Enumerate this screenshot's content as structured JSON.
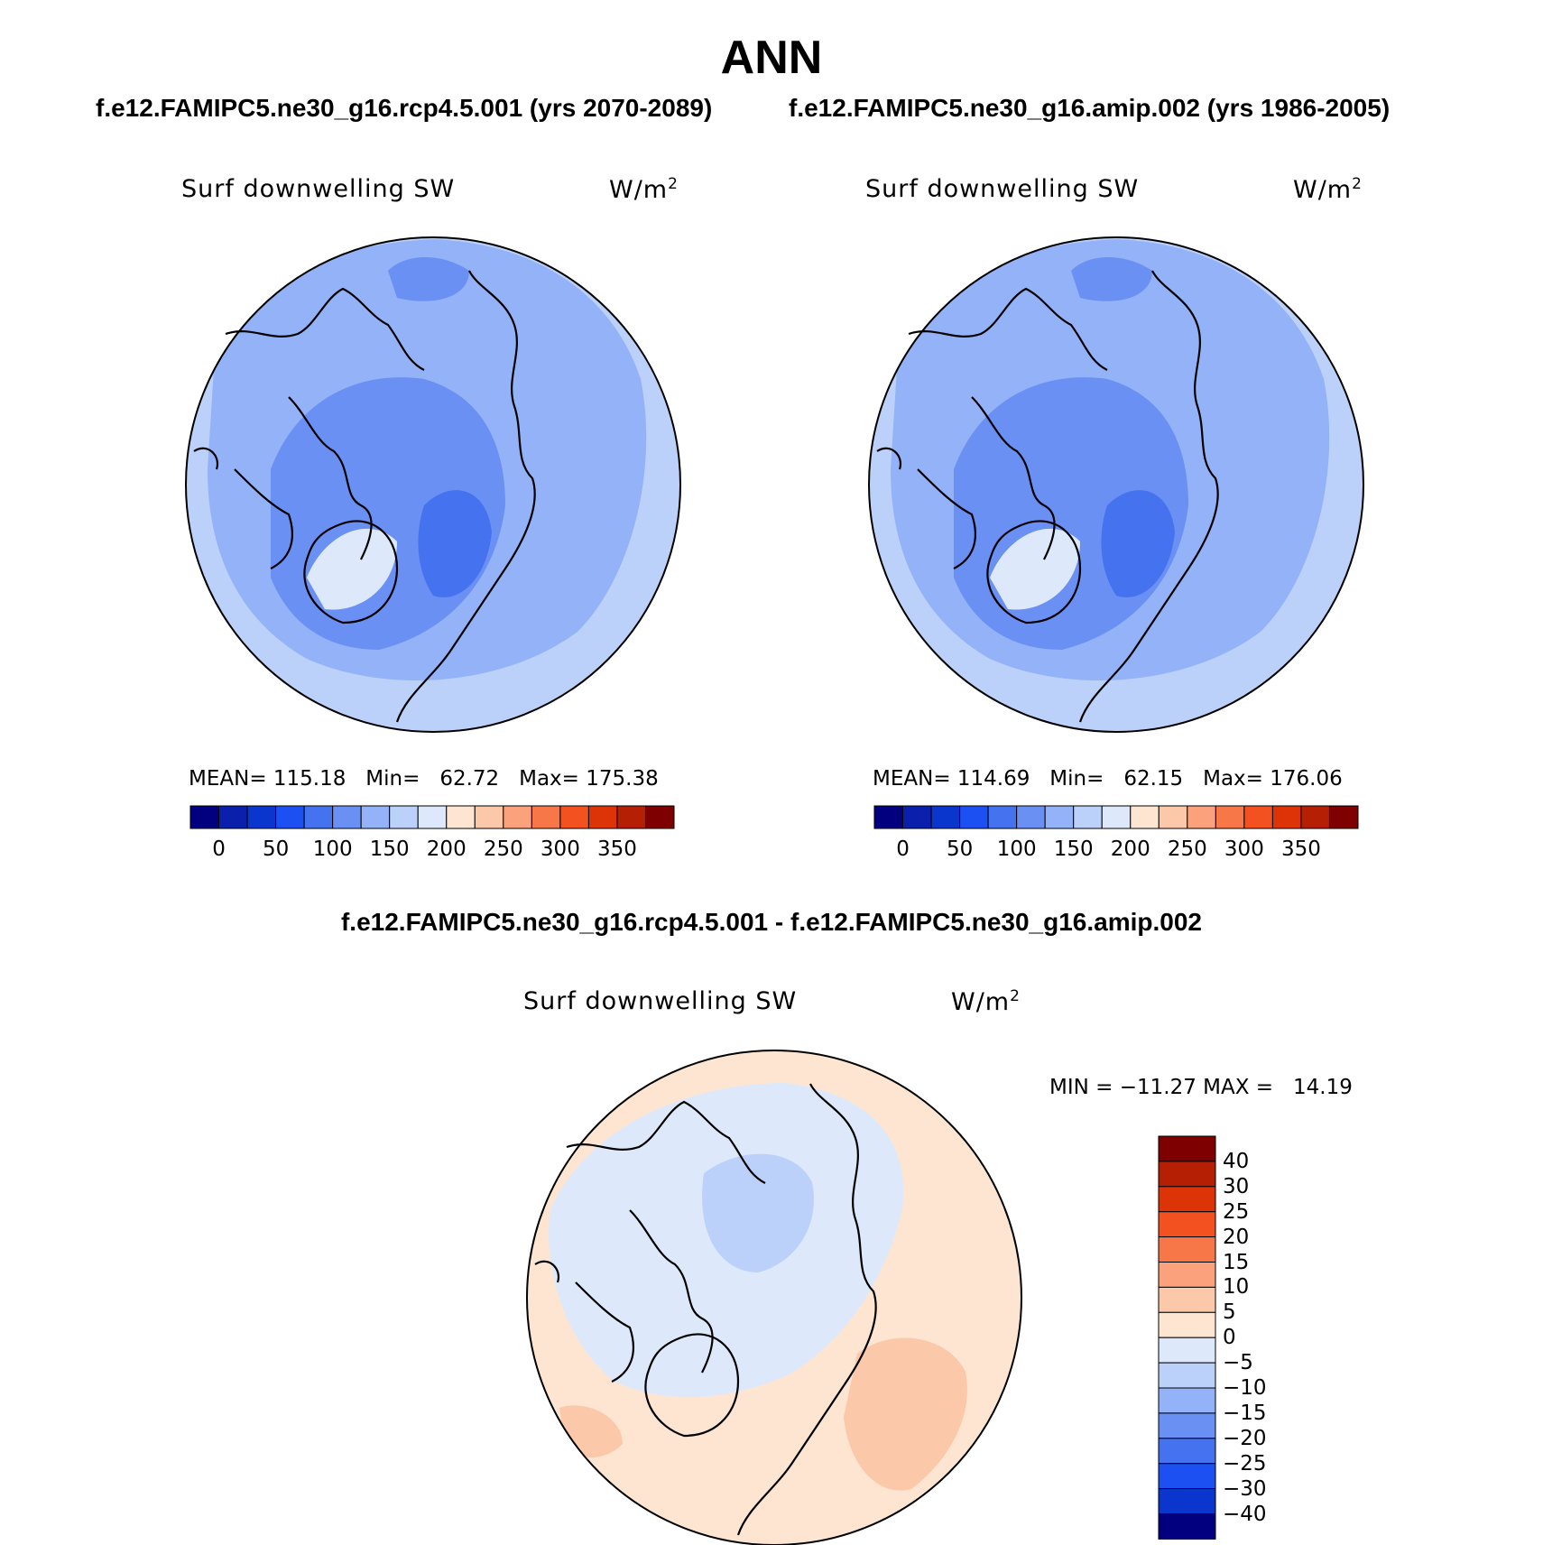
{
  "figure": {
    "title": "ANN",
    "subtitle_left": "f.e12.FAMIPC5.ne30_g16.rcp4.5.001 (yrs 2070-2089)",
    "subtitle_right": "f.e12.FAMIPC5.ne30_g16.amip.002 (yrs 1986-2005)",
    "diff_title": "f.e12.FAMIPC5.ne30_g16.rcp4.5.001 - f.e12.FAMIPC5.ne30_g16.amip.002"
  },
  "panels": [
    {
      "variable": "Surf downwelling SW",
      "units_base": "W/m",
      "units_exp": "2",
      "stats": "MEAN= 115.18   Min=   62.72   Max= 175.38"
    },
    {
      "variable": "Surf downwelling SW",
      "units_base": "W/m",
      "units_exp": "2",
      "stats": "MEAN= 114.69   Min=   62.15   Max= 176.06"
    },
    {
      "variable": "Surf downwelling SW",
      "units_base": "W/m",
      "units_exp": "2",
      "stats": "MIN = −11.27 MAX =   14.19"
    }
  ],
  "chart_data": [
    {
      "type": "heatmap",
      "projection": "north-polar-stereographic",
      "title": "Surf downwelling SW",
      "units": "W/m2",
      "mean": 115.18,
      "min": 62.72,
      "max": 175.38,
      "colorbar": {
        "orientation": "horizontal",
        "tick_labels": [
          "0",
          "50",
          "100",
          "150",
          "200",
          "250",
          "300",
          "350"
        ],
        "tick_values": [
          0,
          50,
          100,
          150,
          200,
          250,
          300,
          350
        ],
        "colors": [
          "#02007f",
          "#0a1fac",
          "#0a36cd",
          "#1c50f3",
          "#4573f0",
          "#6b90f3",
          "#93b2f7",
          "#bcd1fa",
          "#dde9fb",
          "#fde5d2",
          "#fcc8aa",
          "#fba27d",
          "#f77749",
          "#f3511f",
          "#dc3307",
          "#b52005",
          "#7f0000"
        ]
      },
      "field_levels": [
        {
          "value": 120,
          "color": "#93b2f7"
        },
        {
          "value": 110,
          "color": "#6b90f3"
        },
        {
          "value": 95,
          "color": "#4573f0"
        }
      ]
    },
    {
      "type": "heatmap",
      "projection": "north-polar-stereographic",
      "title": "Surf downwelling SW",
      "units": "W/m2",
      "mean": 114.69,
      "min": 62.15,
      "max": 176.06,
      "colorbar": {
        "orientation": "horizontal",
        "tick_labels": [
          "0",
          "50",
          "100",
          "150",
          "200",
          "250",
          "300",
          "350"
        ],
        "tick_values": [
          0,
          50,
          100,
          150,
          200,
          250,
          300,
          350
        ],
        "colors": [
          "#02007f",
          "#0a1fac",
          "#0a36cd",
          "#1c50f3",
          "#4573f0",
          "#6b90f3",
          "#93b2f7",
          "#bcd1fa",
          "#dde9fb",
          "#fde5d2",
          "#fcc8aa",
          "#fba27d",
          "#f77749",
          "#f3511f",
          "#dc3307",
          "#b52005",
          "#7f0000"
        ]
      },
      "field_levels": [
        {
          "value": 120,
          "color": "#93b2f7"
        },
        {
          "value": 110,
          "color": "#6b90f3"
        },
        {
          "value": 95,
          "color": "#4573f0"
        }
      ]
    },
    {
      "type": "heatmap",
      "projection": "north-polar-stereographic",
      "title": "Surf downwelling SW",
      "units": "W/m2",
      "min": -11.27,
      "max": 14.19,
      "colorbar": {
        "orientation": "vertical",
        "tick_labels": [
          "40",
          "30",
          "25",
          "20",
          "15",
          "10",
          "5",
          "0",
          "−5",
          "−10",
          "−15",
          "−20",
          "−25",
          "−30",
          "−40"
        ],
        "tick_values": [
          40,
          30,
          25,
          20,
          15,
          10,
          5,
          0,
          -5,
          -10,
          -15,
          -20,
          -25,
          -30,
          -40
        ],
        "colors": [
          "#7f0000",
          "#b52005",
          "#dc3307",
          "#f3511f",
          "#f77749",
          "#fba27d",
          "#fcc8aa",
          "#fde5d2",
          "#dde9fb",
          "#bcd1fa",
          "#93b2f7",
          "#6b90f3",
          "#4573f0",
          "#1c50f3",
          "#0a36cd",
          "#02007f"
        ]
      },
      "field_levels": [
        {
          "value": 2,
          "color": "#fde5d2"
        },
        {
          "value": -2,
          "color": "#dde9fb"
        },
        {
          "value": -7,
          "color": "#bcd1fa"
        },
        {
          "value": 7,
          "color": "#fcc8aa"
        }
      ]
    }
  ]
}
